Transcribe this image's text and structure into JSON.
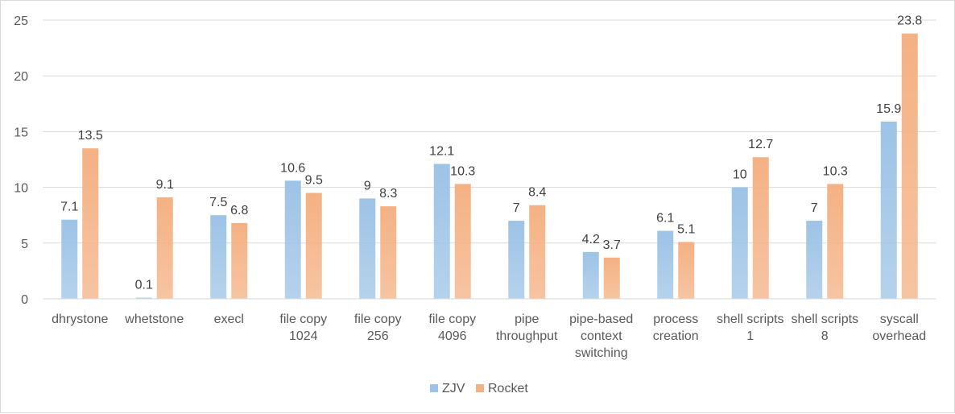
{
  "chart_data": {
    "type": "bar",
    "categories": [
      "dhrystone",
      "whetstone",
      "execl",
      "file copy 1024",
      "file copy 256",
      "file copy 4096",
      "pipe throughput",
      "pipe-based context switching",
      "process creation",
      "shell scripts 1",
      "shell scripts 8",
      "syscall overhead"
    ],
    "category_lines": [
      [
        "dhrystone"
      ],
      [
        "whetstone"
      ],
      [
        "execl"
      ],
      [
        "file copy",
        "1024"
      ],
      [
        "file copy",
        "256"
      ],
      [
        "file copy",
        "4096"
      ],
      [
        "pipe",
        "throughput"
      ],
      [
        "pipe-based",
        "context",
        "switching"
      ],
      [
        "process",
        "creation"
      ],
      [
        "shell scripts",
        "1"
      ],
      [
        "shell scripts",
        "8"
      ],
      [
        "syscall",
        "overhead"
      ]
    ],
    "series": [
      {
        "name": "ZJV",
        "values": [
          7.1,
          0.1,
          7.5,
          10.6,
          9,
          12.1,
          7,
          4.2,
          6.1,
          10,
          7,
          15.9
        ],
        "color": "#9dc3e6"
      },
      {
        "name": "Rocket",
        "values": [
          13.5,
          9.1,
          6.8,
          9.5,
          8.3,
          10.3,
          8.4,
          3.7,
          5.1,
          12.7,
          10.3,
          23.8
        ],
        "color": "#f4b183"
      }
    ],
    "ylim": [
      0,
      25
    ],
    "yticks": [
      0,
      5,
      10,
      15,
      20,
      25
    ],
    "title": "",
    "xlabel": "",
    "ylabel": "",
    "grid": true,
    "legend": "bottom"
  }
}
